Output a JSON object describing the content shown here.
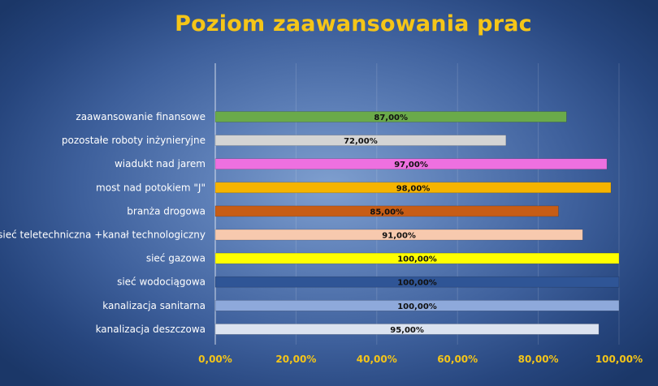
{
  "chart_data": {
    "type": "bar",
    "orientation": "horizontal",
    "title": "Poziom zaawansowania prac",
    "xlim": [
      0,
      100
    ],
    "x_ticks": [
      0,
      20,
      40,
      60,
      80,
      100
    ],
    "x_tick_labels": [
      "0,00%",
      "20,00%",
      "40,00%",
      "60,00%",
      "80,00%",
      "100,00%"
    ],
    "grid": true,
    "categories": [
      "zaawansowanie finansowe",
      "pozostałe roboty inżynieryjne",
      "wiadukt nad jarem",
      "most nad potokiem \"J\"",
      "branża drogowa",
      "sieć teletechniczna +kanał technologiczny",
      "sieć gazowa",
      "sieć wodociągowa",
      "kanalizacja sanitarna",
      "kanalizacja deszczowa"
    ],
    "values": [
      87,
      72,
      97,
      98,
      85,
      91,
      100,
      100,
      100,
      95
    ],
    "data_labels": [
      "87,00%",
      "72,00%",
      "97,00%",
      "98,00%",
      "85,00%",
      "91,00%",
      "100,00%",
      "100,00%",
      "100,00%",
      "95,00%"
    ],
    "colors": [
      "#6aaa4a",
      "#d4d4d4",
      "#ee70e0",
      "#f6b400",
      "#c75d16",
      "#f7c9ae",
      "#ffff00",
      "#2f5596",
      "#8ea9db",
      "#dce3f0"
    ]
  }
}
